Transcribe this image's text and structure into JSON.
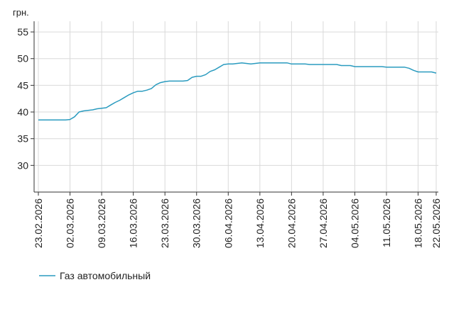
{
  "chart_data": {
    "type": "line",
    "title": "",
    "unit_label": "грн.",
    "xlabel": "",
    "ylabel": "",
    "ylim": [
      25,
      57
    ],
    "yticks": [
      30,
      35,
      40,
      45,
      50,
      55
    ],
    "grid": true,
    "legend_position": "bottom-left",
    "x_tick_labels": [
      "23.02.2026",
      "02.03.2026",
      "09.03.2026",
      "16.03.2026",
      "23.03.2026",
      "30.03.2026",
      "06.04.2026",
      "13.04.2026",
      "20.04.2026",
      "27.04.2026",
      "04.05.2026",
      "11.05.2026",
      "18.05.2026",
      "22.05.2026"
    ],
    "colors": {
      "series": "#2a9bbf",
      "grid": "#d9d9d9",
      "axis": "#333333"
    },
    "series": [
      {
        "name": "Газ автомобильный",
        "x": [
          "2026-02-23",
          "2026-03-01",
          "2026-03-02",
          "2026-03-03",
          "2026-03-04",
          "2026-03-05",
          "2026-03-06",
          "2026-03-07",
          "2026-03-08",
          "2026-03-09",
          "2026-03-10",
          "2026-03-11",
          "2026-03-12",
          "2026-03-13",
          "2026-03-14",
          "2026-03-15",
          "2026-03-16",
          "2026-03-17",
          "2026-03-18",
          "2026-03-19",
          "2026-03-20",
          "2026-03-21",
          "2026-03-22",
          "2026-03-23",
          "2026-03-24",
          "2026-03-25",
          "2026-03-26",
          "2026-03-27",
          "2026-03-28",
          "2026-03-29",
          "2026-03-30",
          "2026-03-31",
          "2026-04-01",
          "2026-04-02",
          "2026-04-03",
          "2026-04-04",
          "2026-04-05",
          "2026-04-06",
          "2026-04-07",
          "2026-04-08",
          "2026-04-09",
          "2026-04-10",
          "2026-04-11",
          "2026-04-12",
          "2026-04-13",
          "2026-04-14",
          "2026-04-19",
          "2026-04-20",
          "2026-04-23",
          "2026-04-24",
          "2026-04-30",
          "2026-05-01",
          "2026-05-03",
          "2026-05-04",
          "2026-05-10",
          "2026-05-11",
          "2026-05-15",
          "2026-05-16",
          "2026-05-17",
          "2026-05-18",
          "2026-05-21",
          "2026-05-22"
        ],
        "y": [
          38.5,
          38.5,
          38.6,
          39.1,
          40.0,
          40.2,
          40.3,
          40.4,
          40.6,
          40.7,
          40.8,
          41.3,
          41.8,
          42.2,
          42.7,
          43.2,
          43.6,
          43.9,
          43.9,
          44.1,
          44.4,
          45.1,
          45.5,
          45.7,
          45.8,
          45.8,
          45.8,
          45.8,
          45.9,
          46.5,
          46.7,
          46.7,
          47.0,
          47.6,
          47.9,
          48.4,
          48.9,
          49.0,
          49.0,
          49.1,
          49.2,
          49.1,
          49.0,
          49.1,
          49.2,
          49.2,
          49.2,
          49.0,
          49.0,
          48.9,
          48.9,
          48.7,
          48.7,
          48.5,
          48.5,
          48.4,
          48.4,
          48.2,
          47.8,
          47.5,
          47.5,
          47.3
        ]
      }
    ]
  }
}
